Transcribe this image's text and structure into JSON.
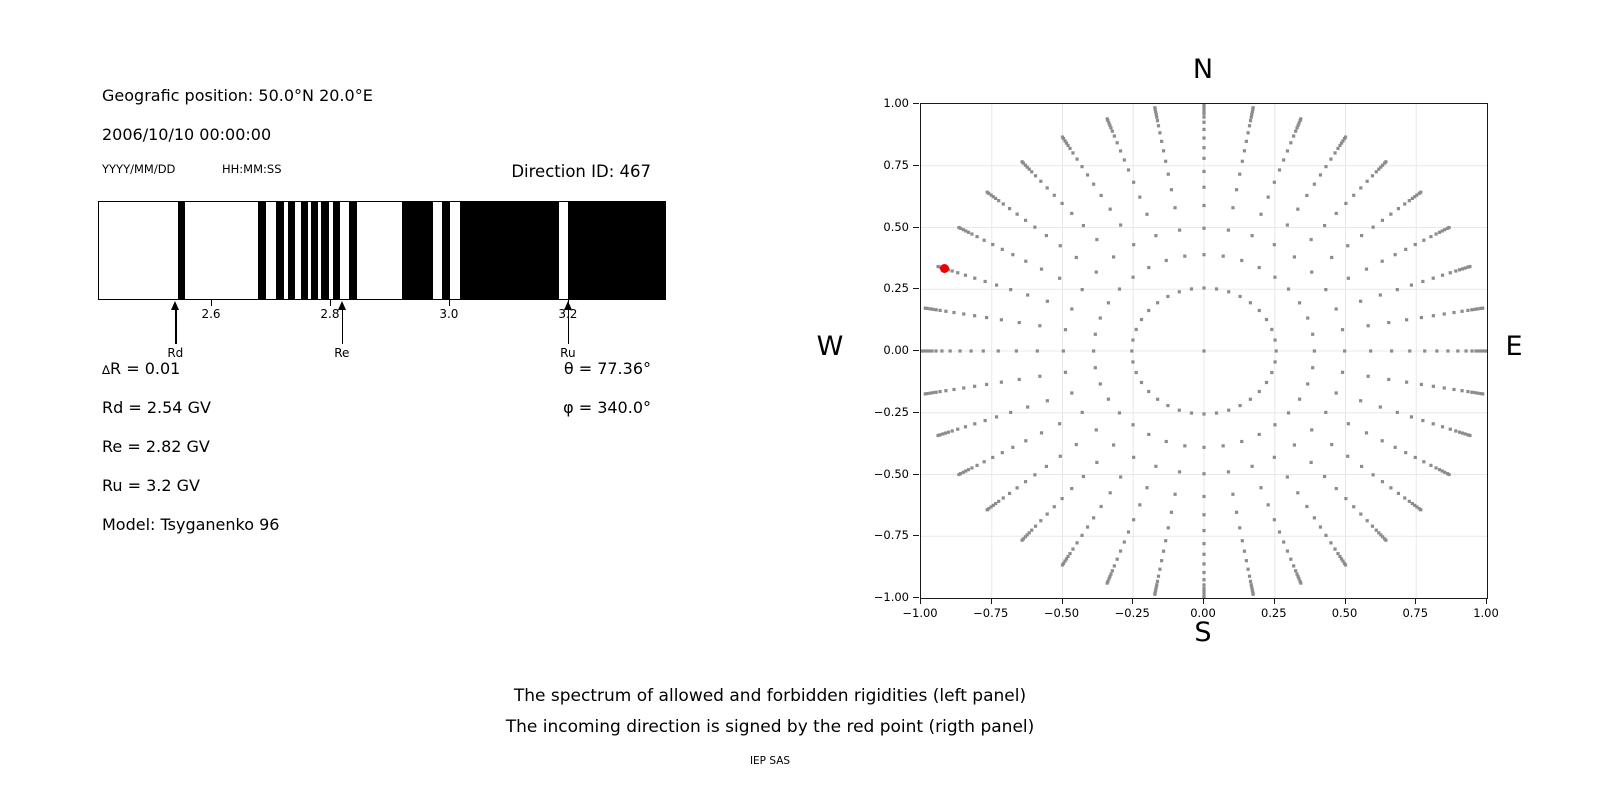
{
  "header": {
    "position_line": "Geografic position: 50.0°N 20.0°E",
    "datetime_line": "2006/10/10 00:00:00",
    "date_format": "YYYY/MM/DD",
    "time_format": "HH:MM:SS",
    "direction_id": "Direction ID: 467"
  },
  "spectrum_panel": {
    "delta_symbol": "∆",
    "delta_rest": "R = 0.01",
    "line_rd": "Rd = 2.54 GV",
    "line_re": "Re = 2.82 GV",
    "line_ru": "Ru = 3.2 GV",
    "line_model": "Model: Tsyganenko 96",
    "line_theta": "θ = 77.36°",
    "line_phi": "φ = 340.0°"
  },
  "caption": {
    "line1": "The spectrum of allowed and forbidden rigidities (left panel)",
    "line2": "The incoming direction is signed by the red point (rigth panel)",
    "credit": "IEP SAS"
  },
  "chart_data": [
    {
      "id": "rigidity-spectrum",
      "type": "bar",
      "description": "Barcode-style spectrum: black bands = allowed rigidities, white = forbidden",
      "x_range": [
        2.41,
        3.365
      ],
      "x_ticks": [
        2.6,
        2.8,
        3.0,
        3.2
      ],
      "x_tick_labels": [
        "2.6",
        "2.8",
        "3.0",
        "3.2"
      ],
      "allowed_bands": [
        [
          2.542,
          2.554
        ],
        [
          2.678,
          2.69
        ],
        [
          2.708,
          2.721
        ],
        [
          2.727,
          2.74
        ],
        [
          2.75,
          2.762
        ],
        [
          2.766,
          2.779
        ],
        [
          2.783,
          2.796
        ],
        [
          2.803,
          2.816
        ],
        [
          2.831,
          2.843
        ],
        [
          2.919,
          2.971
        ],
        [
          2.986,
          3.001
        ],
        [
          3.017,
          3.183
        ],
        [
          3.198,
          3.365
        ]
      ],
      "markers": [
        {
          "label": "Rd",
          "value": 2.54
        },
        {
          "label": "Re",
          "value": 2.82
        },
        {
          "label": "Ru",
          "value": 3.2
        }
      ],
      "band_color": "#000000",
      "background_color": "#ffffff"
    },
    {
      "id": "incoming-direction",
      "type": "scatter",
      "description": "Grid of viewing directions; red point marks the incoming direction",
      "xlim": [
        -1.0,
        1.0
      ],
      "ylim": [
        -1.0,
        1.0
      ],
      "x_ticks": [
        -1.0,
        -0.75,
        -0.5,
        -0.25,
        0.0,
        0.25,
        0.5,
        0.75,
        1.0
      ],
      "y_ticks": [
        -1.0,
        -0.75,
        -0.5,
        -0.25,
        0.0,
        0.25,
        0.5,
        0.75,
        1.0
      ],
      "x_tick_labels": [
        "−1.00",
        "−0.75",
        "−0.50",
        "−0.25",
        "0.00",
        "0.25",
        "0.50",
        "0.75",
        "1.00"
      ],
      "y_tick_labels": [
        "−1.00",
        "−0.75",
        "−0.50",
        "−0.25",
        "0.00",
        "0.25",
        "0.50",
        "0.75",
        "1.00"
      ],
      "grid": true,
      "compass": {
        "top": "N",
        "bottom": "S",
        "left": "W",
        "right": "E"
      },
      "spokes": {
        "azimuth_start_deg": 0,
        "azimuth_step_deg": 10,
        "count": 36,
        "radii": [
          0.255,
          0.39,
          0.497,
          0.589,
          0.663,
          0.727,
          0.78,
          0.823,
          0.862,
          0.897,
          0.926,
          0.947,
          0.961,
          0.972,
          0.982,
          0.993,
          1.0
        ]
      },
      "center_dot": true,
      "red_point": {
        "x": -0.917,
        "y": 0.334,
        "theta_deg": 77.36,
        "phi_deg": 340.0
      },
      "dot_color": "#8c8c8c",
      "red_color": "#ee0000",
      "grid_color": "#e8e8e8"
    }
  ]
}
